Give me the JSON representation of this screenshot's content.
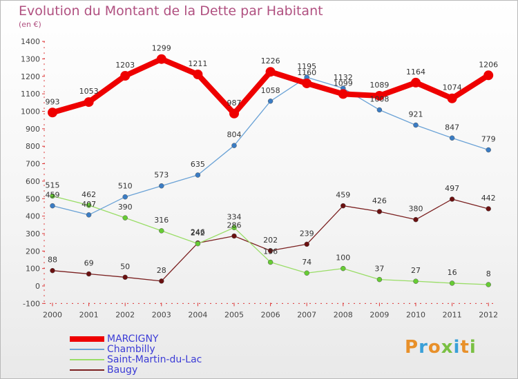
{
  "title": "Evolution du Montant de la Dette par Habitant",
  "subtitle": "(en €)",
  "brand": {
    "letters": [
      "P",
      "r",
      "o",
      "x",
      "i",
      "t",
      "i"
    ],
    "colors": [
      "#e8902a",
      "#3aa0d8",
      "#e8902a",
      "#7ac043",
      "#3aa0d8",
      "#e8902a",
      "#7ac043"
    ]
  },
  "chart_data": {
    "type": "line",
    "title": "Evolution du Montant de la Dette par Habitant",
    "ylabel": "(en €)",
    "x": [
      "2000",
      "2001",
      "2002",
      "2003",
      "2004",
      "2005",
      "2006",
      "2007",
      "2008",
      "2009",
      "2010",
      "2011",
      "2012"
    ],
    "ylim": [
      -100,
      1400
    ],
    "yticks": [
      "-100",
      "0",
      "100",
      "200",
      "300",
      "400",
      "500",
      "600",
      "700",
      "800",
      "900",
      "1000",
      "1100",
      "1200",
      "1300",
      "1400"
    ],
    "grid": false,
    "legend_position": "bottom-left",
    "series": [
      {
        "name": "MARCIGNY",
        "color": "#ee0000",
        "values": [
          993,
          1053,
          1203,
          1299,
          1211,
          987,
          1226,
          1160,
          1099,
          1089,
          1164,
          1074,
          1206
        ],
        "labels": [
          "993",
          "1053",
          "1203",
          "1299",
          "1211",
          "987",
          "1226",
          "1160",
          "1099",
          "1089",
          "1164",
          "1074",
          "1206"
        ]
      },
      {
        "name": "Chambilly",
        "color": "#6aa2d6",
        "values": [
          459,
          407,
          510,
          573,
          635,
          804,
          1058,
          1195,
          1132,
          1008,
          921,
          847,
          779
        ],
        "labels": [
          "459",
          "407",
          "510",
          "573",
          "635",
          "804",
          "1058",
          "1195",
          "1132",
          "1008",
          "921",
          "847",
          "779"
        ]
      },
      {
        "name": "Saint-Martin-du-Lac",
        "color": "#99dd66",
        "values": [
          515,
          462,
          390,
          316,
          242,
          334,
          136,
          74,
          100,
          37,
          27,
          16,
          8
        ],
        "labels": [
          "515",
          "462",
          "390",
          "316",
          "242",
          "334",
          "136",
          "74",
          "100",
          "37",
          "27",
          "16",
          "8"
        ]
      },
      {
        "name": "Baugy",
        "color": "#7a1f1f",
        "values": [
          88,
          69,
          50,
          28,
          246,
          286,
          202,
          239,
          459,
          426,
          380,
          497,
          442
        ],
        "labels": [
          "88",
          "69",
          "50",
          "28",
          "246",
          "286",
          "202",
          "239",
          "459",
          "426",
          "380",
          "497",
          "442"
        ]
      }
    ]
  }
}
